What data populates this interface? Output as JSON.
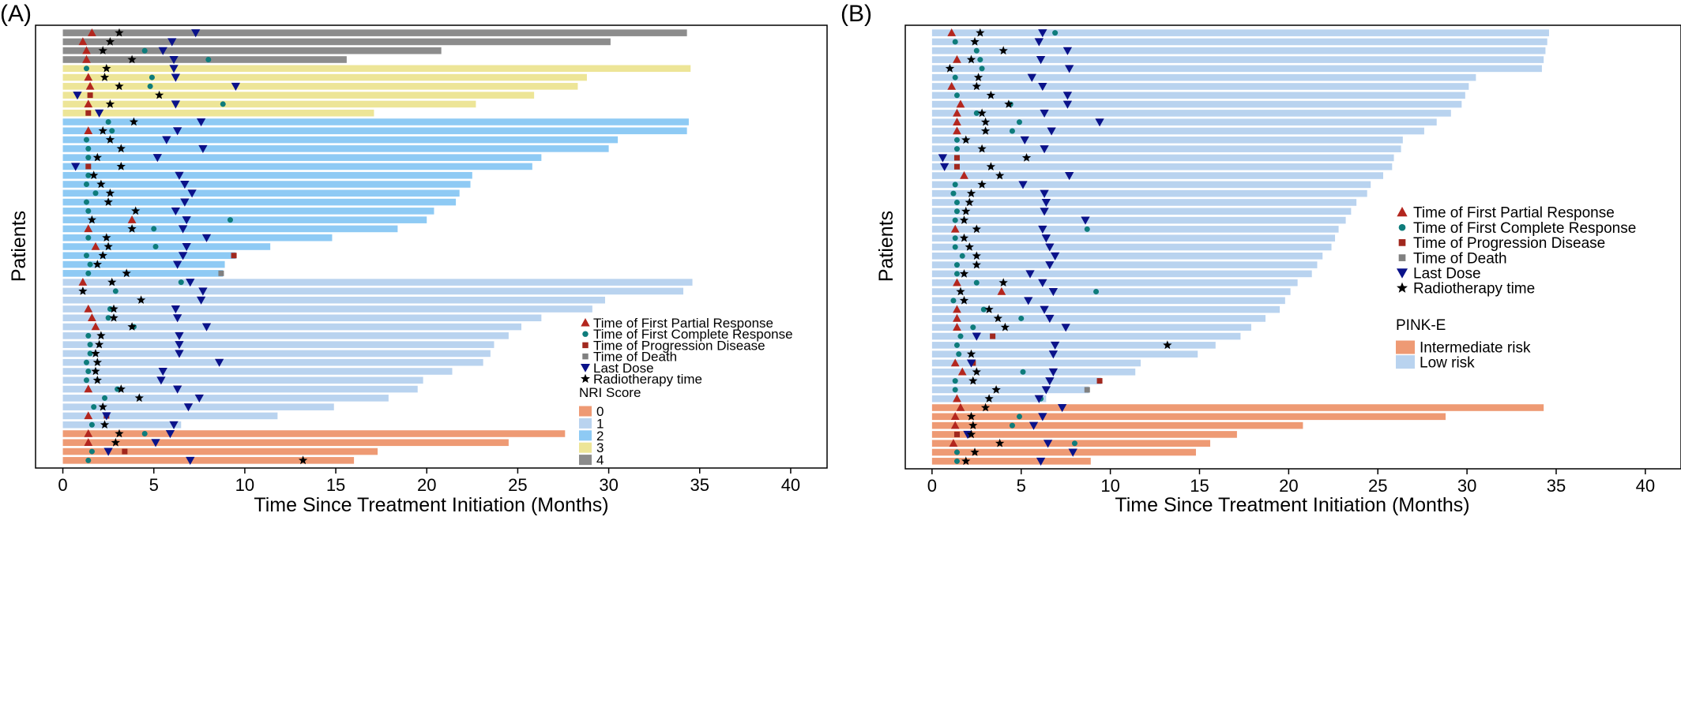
{
  "chart_data": [
    {
      "panel": "(A)",
      "type": "swimmer",
      "xlabel": "Time Since Treatment Initiation (Months)",
      "ylabel": "Patients",
      "xlim": [
        -1.5,
        42
      ],
      "xticks": [
        0,
        5,
        10,
        15,
        20,
        25,
        30,
        35,
        40
      ],
      "marker_legend": [
        {
          "marker": "triangle",
          "color": "#b3261e",
          "label": "Time of First Partial Response"
        },
        {
          "marker": "dot",
          "color": "#0e7c7b",
          "label": "Time of First Complete Response"
        },
        {
          "marker": "square",
          "color": "#a1281e",
          "label": "Time of Progression Disease"
        },
        {
          "marker": "square",
          "color": "#808080",
          "label": "Time of Death"
        },
        {
          "marker": "down-triangle",
          "color": "#0a128a",
          "label": "Last Dose"
        },
        {
          "marker": "star",
          "color": "#000000",
          "label": "Radiotherapy time"
        }
      ],
      "group_legend_title": "NRI Score",
      "groups": [
        {
          "label": "0",
          "color": "#ee9a74"
        },
        {
          "label": "1",
          "color": "#b9d3ef"
        },
        {
          "label": "2",
          "color": "#8ecaf4"
        },
        {
          "label": "3",
          "color": "#ede597"
        },
        {
          "label": "4",
          "color": "#8c8c8c"
        }
      ],
      "patients": [
        {
          "g": 4,
          "end": 34.3,
          "pr": 1.6,
          "ld": 7.3,
          "rt": 3.1
        },
        {
          "g": 4,
          "end": 30.1,
          "pr": 1.1,
          "ld": 6.0,
          "rt": 2.6
        },
        {
          "g": 4,
          "end": 20.8,
          "pr": 1.3,
          "cr": 4.5,
          "ld": 5.5,
          "rt": 2.2
        },
        {
          "g": 4,
          "end": 15.6,
          "pr": 1.3,
          "cr": 8.0,
          "ld": 6.1,
          "rt": 3.8
        },
        {
          "g": 3,
          "end": 34.5,
          "cr": 1.3,
          "ld": 6.1,
          "rt": 2.4
        },
        {
          "g": 3,
          "end": 28.8,
          "pr": 1.4,
          "cr": 4.9,
          "ld": 6.2,
          "rt": 2.3
        },
        {
          "g": 3,
          "end": 28.3,
          "pr": 1.5,
          "cr": 4.8,
          "ld": 9.5,
          "rt": 3.1
        },
        {
          "g": 3,
          "end": 25.9,
          "pd": 1.5,
          "ld": 0.8,
          "rt": 5.3
        },
        {
          "g": 3,
          "end": 22.7,
          "pr": 1.4,
          "cr": 8.8,
          "ld": 6.2,
          "rt": 2.6
        },
        {
          "g": 3,
          "end": 17.1,
          "pd": 1.4,
          "ld": 2.0
        },
        {
          "g": 2,
          "end": 34.4,
          "cr": 2.5,
          "ld": 7.6,
          "rt": 3.9
        },
        {
          "g": 2,
          "end": 34.3,
          "pr": 1.4,
          "cr": 2.7,
          "ld": 6.3,
          "rt": 2.2
        },
        {
          "g": 2,
          "end": 30.5,
          "cr": 1.3,
          "ld": 5.7,
          "rt": 2.6
        },
        {
          "g": 2,
          "end": 30.0,
          "cr": 1.4,
          "ld": 7.7,
          "rt": 3.2
        },
        {
          "g": 2,
          "end": 26.3,
          "cr": 1.4,
          "ld": 5.2,
          "rt": 1.9
        },
        {
          "g": 2,
          "end": 25.8,
          "pd": 1.4,
          "ld": 0.7,
          "rt": 3.2
        },
        {
          "g": 2,
          "end": 22.5,
          "cr": 1.4,
          "ld": 6.4,
          "rt": 1.7
        },
        {
          "g": 2,
          "end": 22.4,
          "cr": 1.3,
          "ld": 6.7,
          "rt": 2.1
        },
        {
          "g": 2,
          "end": 21.8,
          "cr": 1.8,
          "ld": 7.1,
          "rt": 2.6
        },
        {
          "g": 2,
          "end": 21.6,
          "cr": 1.3,
          "ld": 6.7,
          "rt": 2.5
        },
        {
          "g": 2,
          "end": 20.4,
          "cr": 1.4,
          "ld": 6.2,
          "rt": 4.0
        },
        {
          "g": 2,
          "end": 20.0,
          "pr": 3.8,
          "cr": 9.2,
          "ld": 6.8,
          "rt": 1.6
        },
        {
          "g": 2,
          "end": 18.4,
          "pr": 1.4,
          "cr": 5.0,
          "ld": 6.6,
          "rt": 3.8
        },
        {
          "g": 2,
          "end": 14.8,
          "cr": 1.4,
          "ld": 7.9,
          "rt": 2.4
        },
        {
          "g": 2,
          "end": 11.4,
          "pr": 1.8,
          "cr": 5.1,
          "ld": 6.8,
          "rt": 2.5
        },
        {
          "g": 2,
          "end": 9.5,
          "pd": 9.4,
          "cr": 1.3,
          "ld": 6.6,
          "rt": 2.2
        },
        {
          "g": 2,
          "end": 8.9,
          "cr": 1.5,
          "ld": 6.3,
          "rt": 1.9
        },
        {
          "g": 2,
          "end": 8.8,
          "death": 8.7,
          "cr": 1.4,
          "rt": 3.5
        },
        {
          "g": 1,
          "end": 34.6,
          "pr": 1.1,
          "cr": 6.5,
          "ld": 7.0,
          "rt": 2.7
        },
        {
          "g": 1,
          "end": 34.1,
          "cr": 2.9,
          "ld": 7.7,
          "rt": 1.1
        },
        {
          "g": 1,
          "end": 29.8,
          "ld": 7.6,
          "rt": 4.3
        },
        {
          "g": 1,
          "end": 29.1,
          "pr": 1.4,
          "cr": 2.6,
          "ld": 6.2,
          "rt": 2.8
        },
        {
          "g": 1,
          "end": 26.3,
          "pr": 1.6,
          "cr": 2.5,
          "ld": 6.3,
          "rt": 2.8
        },
        {
          "g": 1,
          "end": 25.2,
          "pr": 1.8,
          "cr": 3.9,
          "ld": 7.9,
          "rt": 3.8
        },
        {
          "g": 1,
          "end": 24.5,
          "cr": 1.4,
          "ld": 6.4,
          "rt": 2.1
        },
        {
          "g": 1,
          "end": 23.7,
          "cr": 1.5,
          "ld": 6.4,
          "rt": 2.0
        },
        {
          "g": 1,
          "end": 23.5,
          "cr": 1.5,
          "ld": 6.4,
          "rt": 1.8
        },
        {
          "g": 1,
          "end": 23.1,
          "cr": 1.3,
          "ld": 8.6,
          "rt": 1.9
        },
        {
          "g": 1,
          "end": 21.4,
          "cr": 1.4,
          "ld": 5.5,
          "rt": 1.8
        },
        {
          "g": 1,
          "end": 19.8,
          "cr": 1.3,
          "ld": 5.4,
          "rt": 1.9
        },
        {
          "g": 1,
          "end": 19.5,
          "pr": 1.4,
          "cr": 3.0,
          "ld": 6.3,
          "rt": 3.2
        },
        {
          "g": 1,
          "end": 17.9,
          "cr": 2.3,
          "ld": 7.5,
          "rt": 4.2
        },
        {
          "g": 1,
          "end": 14.9,
          "cr": 1.7,
          "ld": 6.9,
          "rt": 2.2
        },
        {
          "g": 1,
          "end": 11.8,
          "pr": 1.4,
          "pd": 2.4,
          "ld": 2.4
        },
        {
          "g": 1,
          "end": 6.5,
          "cr": 1.6,
          "ld": 6.1,
          "rt": 2.3
        },
        {
          "g": 0,
          "end": 27.6,
          "pr": 1.4,
          "cr": 4.5,
          "ld": 5.9,
          "rt": 3.1
        },
        {
          "g": 0,
          "end": 24.5,
          "pr": 1.4,
          "ld": 5.1,
          "rt": 2.9
        },
        {
          "g": 0,
          "end": 17.3,
          "pd": 3.4,
          "cr": 1.6,
          "ld": 2.5
        },
        {
          "g": 0,
          "end": 16.0,
          "cr": 1.4,
          "ld": 7.0,
          "rt": 13.2
        }
      ]
    },
    {
      "panel": "(B)",
      "type": "swimmer",
      "xlabel": "Time Since Treatment Initiation (Months)",
      "ylabel": "Patients",
      "xlim": [
        -1.5,
        42
      ],
      "xticks": [
        0,
        5,
        10,
        15,
        20,
        25,
        30,
        35,
        40
      ],
      "marker_legend": [
        {
          "marker": "triangle",
          "color": "#b3261e",
          "label": "Time of First Partial Response"
        },
        {
          "marker": "dot",
          "color": "#0e7c7b",
          "label": "Time of First Complete Response"
        },
        {
          "marker": "square",
          "color": "#a1281e",
          "label": "Time of Progression Disease"
        },
        {
          "marker": "square",
          "color": "#808080",
          "label": "Time of Death"
        },
        {
          "marker": "down-triangle",
          "color": "#0a128a",
          "label": "Last Dose"
        },
        {
          "marker": "star",
          "color": "#000000",
          "label": "Radiotherapy time"
        }
      ],
      "group_legend_title": "PINK-E",
      "groups": [
        {
          "label": "Intermediate risk",
          "color": "#ee9a74"
        },
        {
          "label": "Low risk",
          "color": "#b9d3ef"
        }
      ],
      "patients": [
        {
          "g": 1,
          "end": 34.6,
          "pr": 1.1,
          "cr": 6.9,
          "ld": 6.2,
          "rt": 2.7
        },
        {
          "g": 1,
          "end": 34.5,
          "cr": 1.3,
          "ld": 6.0,
          "rt": 2.4
        },
        {
          "g": 1,
          "end": 34.4,
          "cr": 2.5,
          "ld": 7.6,
          "rt": 4.0
        },
        {
          "g": 1,
          "end": 34.3,
          "pr": 1.4,
          "cr": 2.7,
          "ld": 6.1,
          "rt": 2.2
        },
        {
          "g": 1,
          "end": 34.2,
          "cr": 2.8,
          "ld": 7.7,
          "rt": 1.0
        },
        {
          "g": 1,
          "end": 30.5,
          "cr": 1.3,
          "ld": 5.6,
          "rt": 2.6
        },
        {
          "g": 1,
          "end": 30.1,
          "pr": 1.1,
          "ld": 6.2,
          "rt": 2.5
        },
        {
          "g": 1,
          "end": 29.9,
          "cr": 1.4,
          "ld": 7.6,
          "rt": 3.3
        },
        {
          "g": 1,
          "end": 29.7,
          "pr": 1.6,
          "cr": 4.4,
          "ld": 7.6,
          "rt": 4.3
        },
        {
          "g": 1,
          "end": 29.1,
          "pr": 1.4,
          "cr": 2.5,
          "ld": 6.3,
          "rt": 2.8
        },
        {
          "g": 1,
          "end": 28.3,
          "pr": 1.4,
          "cr": 4.9,
          "ld": 9.4,
          "rt": 3.0
        },
        {
          "g": 1,
          "end": 27.6,
          "pr": 1.4,
          "cr": 4.5,
          "ld": 6.7,
          "rt": 3.0
        },
        {
          "g": 1,
          "end": 26.4,
          "cr": 1.4,
          "ld": 5.2,
          "rt": 1.9
        },
        {
          "g": 1,
          "end": 26.3,
          "cr": 1.4,
          "ld": 6.3,
          "rt": 2.8
        },
        {
          "g": 1,
          "end": 25.9,
          "pd": 1.4,
          "ld": 0.6,
          "rt": 5.3
        },
        {
          "g": 1,
          "end": 25.8,
          "pd": 1.4,
          "ld": 0.7,
          "rt": 3.3
        },
        {
          "g": 1,
          "end": 25.3,
          "pr": 1.8,
          "ld": 7.7,
          "rt": 3.8
        },
        {
          "g": 1,
          "end": 24.6,
          "cr": 1.3,
          "ld": 5.1,
          "rt": 2.8
        },
        {
          "g": 1,
          "end": 24.4,
          "cr": 1.2,
          "ld": 6.3,
          "rt": 2.2
        },
        {
          "g": 1,
          "end": 23.8,
          "cr": 1.4,
          "ld": 6.4,
          "rt": 2.1
        },
        {
          "g": 1,
          "end": 23.5,
          "cr": 1.4,
          "ld": 6.3,
          "rt": 1.9
        },
        {
          "g": 1,
          "end": 23.2,
          "cr": 1.3,
          "ld": 8.6,
          "rt": 1.8
        },
        {
          "g": 1,
          "end": 22.8,
          "pr": 1.3,
          "cr": 8.7,
          "ld": 6.2,
          "rt": 2.5
        },
        {
          "g": 1,
          "end": 22.6,
          "cr": 1.3,
          "ld": 6.4,
          "rt": 1.8
        },
        {
          "g": 1,
          "end": 22.4,
          "cr": 1.3,
          "ld": 6.6,
          "rt": 2.1
        },
        {
          "g": 1,
          "end": 21.9,
          "cr": 1.7,
          "ld": 6.9,
          "rt": 2.5
        },
        {
          "g": 1,
          "end": 21.6,
          "cr": 1.4,
          "ld": 6.6,
          "rt": 2.5
        },
        {
          "g": 1,
          "end": 21.3,
          "cr": 1.4,
          "ld": 5.5,
          "rt": 1.8
        },
        {
          "g": 1,
          "end": 20.5,
          "pr": 1.4,
          "cr": 2.5,
          "ld": 6.2,
          "rt": 4.0
        },
        {
          "g": 1,
          "end": 20.1,
          "pr": 3.9,
          "cr": 9.2,
          "ld": 6.8,
          "rt": 1.6
        },
        {
          "g": 1,
          "end": 19.8,
          "cr": 1.2,
          "ld": 5.4,
          "rt": 1.8
        },
        {
          "g": 1,
          "end": 19.5,
          "pr": 1.4,
          "cr": 2.9,
          "ld": 6.3,
          "rt": 3.2
        },
        {
          "g": 1,
          "end": 18.7,
          "pr": 1.4,
          "cr": 5.0,
          "ld": 6.6,
          "rt": 3.7
        },
        {
          "g": 1,
          "end": 17.9,
          "pr": 1.4,
          "cr": 2.3,
          "ld": 7.5,
          "rt": 4.1
        },
        {
          "g": 1,
          "end": 17.3,
          "pd": 3.4,
          "cr": 1.6,
          "ld": 2.5
        },
        {
          "g": 1,
          "end": 15.9,
          "cr": 1.4,
          "ld": 6.9,
          "rt": 13.2
        },
        {
          "g": 1,
          "end": 14.9,
          "cr": 1.5,
          "ld": 6.8,
          "rt": 2.2
        },
        {
          "g": 1,
          "end": 11.7,
          "pr": 1.3,
          "pd": 2.3,
          "ld": 2.2
        },
        {
          "g": 1,
          "end": 11.4,
          "pr": 1.7,
          "cr": 5.1,
          "ld": 6.8,
          "rt": 2.5
        },
        {
          "g": 1,
          "end": 9.5,
          "pd": 9.4,
          "cr": 1.3,
          "ld": 6.6,
          "rt": 2.3
        },
        {
          "g": 1,
          "end": 8.8,
          "death": 8.7,
          "cr": 1.3,
          "ld": 6.4,
          "rt": 3.6
        },
        {
          "g": 1,
          "end": 6.4,
          "pr": 1.4,
          "cr": 6.1,
          "ld": 6.0,
          "rt": 3.2
        },
        {
          "g": 0,
          "end": 34.3,
          "pr": 1.6,
          "ld": 7.3,
          "rt": 3.0
        },
        {
          "g": 0,
          "end": 28.8,
          "pr": 1.3,
          "cr": 4.9,
          "ld": 6.2,
          "rt": 2.2
        },
        {
          "g": 0,
          "end": 20.8,
          "pr": 1.3,
          "cr": 4.5,
          "ld": 5.7,
          "rt": 2.3
        },
        {
          "g": 0,
          "end": 17.1,
          "pd": 1.4,
          "ld": 2.0,
          "rt": 2.2
        },
        {
          "g": 0,
          "end": 15.6,
          "pr": 1.2,
          "cr": 8.0,
          "ld": 6.5,
          "rt": 3.8
        },
        {
          "g": 0,
          "end": 14.8,
          "cr": 1.4,
          "ld": 7.9,
          "rt": 2.4
        },
        {
          "g": 0,
          "end": 8.9,
          "cr": 1.4,
          "ld": 6.1,
          "rt": 1.9
        }
      ]
    }
  ]
}
